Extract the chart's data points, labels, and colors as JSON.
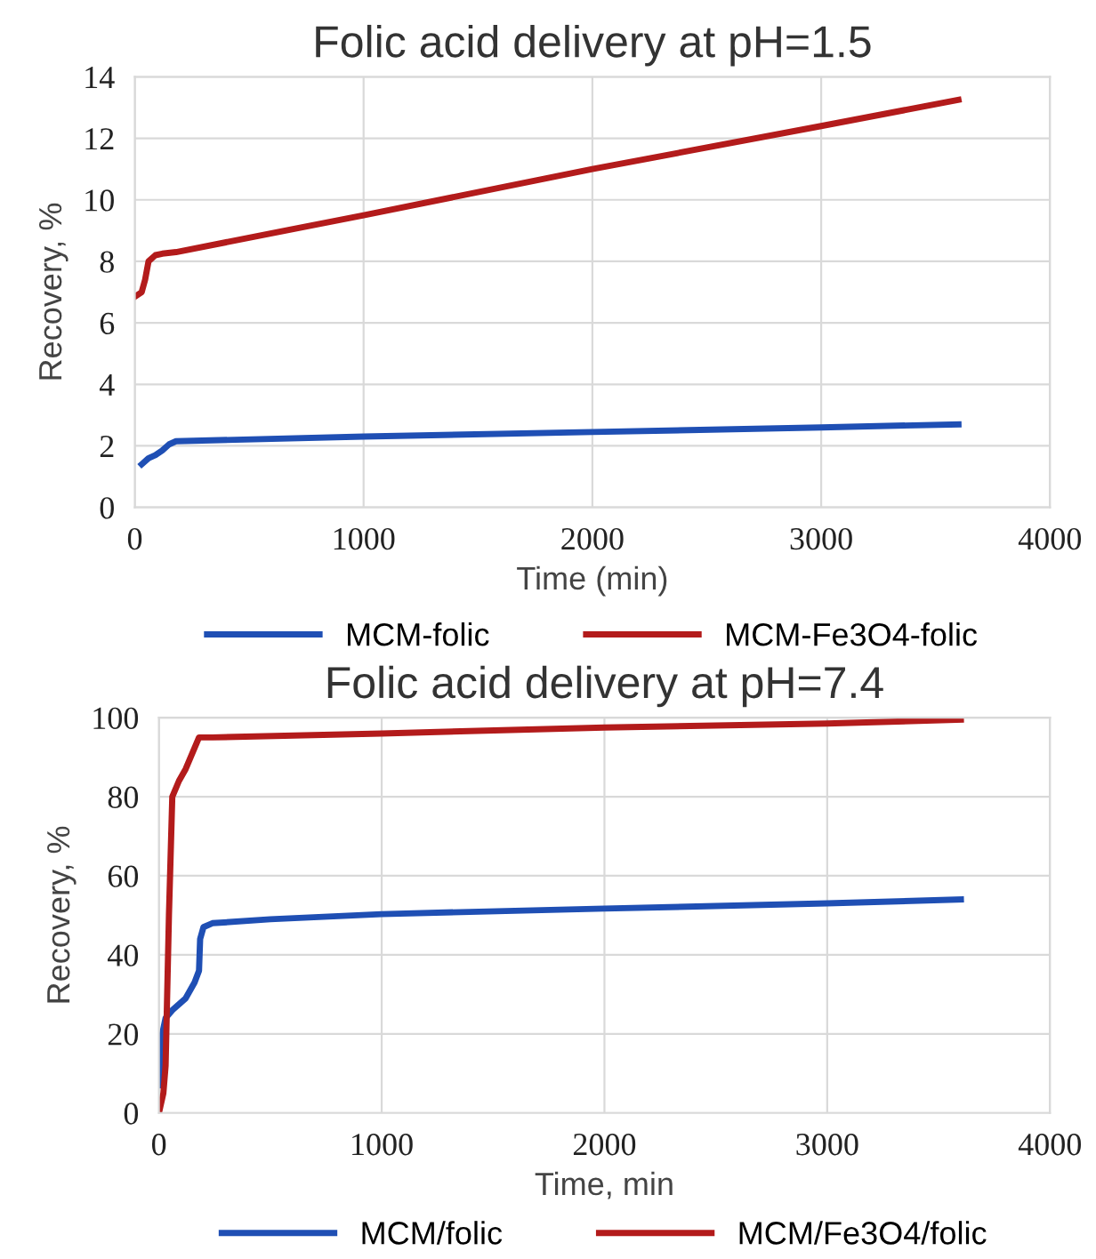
{
  "chart_data": [
    {
      "type": "line",
      "title": "Folic acid delivery at pH=1.5",
      "xlabel": "Time (min)",
      "ylabel": "Recovery, %",
      "xlim": [
        0,
        4000
      ],
      "xticks": [
        0,
        1000,
        2000,
        3000,
        4000
      ],
      "ylim": [
        0,
        14
      ],
      "yticks": [
        0,
        2,
        4,
        6,
        8,
        10,
        12,
        14
      ],
      "grid": true,
      "legend": "bottom",
      "series": [
        {
          "name": "MCM-folic",
          "color": "#1f4fb4",
          "x": [
            30,
            60,
            90,
            120,
            150,
            180,
            1000,
            2000,
            3000,
            3600
          ],
          "values": [
            1.4,
            1.6,
            1.7,
            1.85,
            2.05,
            2.15,
            2.3,
            2.45,
            2.6,
            2.7
          ]
        },
        {
          "name": "MCM-Fe3O4-folic",
          "color": "#b31b1b",
          "x": [
            0,
            30,
            45,
            60,
            90,
            120,
            180,
            1000,
            2000,
            3000,
            3600
          ],
          "values": [
            6.85,
            7.0,
            7.4,
            8.0,
            8.2,
            8.25,
            8.3,
            9.5,
            11.0,
            12.4,
            13.25
          ]
        }
      ]
    },
    {
      "type": "line",
      "title": "Folic acid delivery at pH=7.4",
      "xlabel": "Time, min",
      "ylabel": "Recovery, %",
      "xlim": [
        0,
        4000
      ],
      "xticks": [
        0,
        1000,
        2000,
        3000,
        4000
      ],
      "ylim": [
        0,
        100
      ],
      "yticks": [
        0,
        20,
        40,
        60,
        80,
        100
      ],
      "grid": true,
      "legend": "bottom",
      "series": [
        {
          "name": "MCM/folic",
          "color": "#1f4fb4",
          "x": [
            0,
            15,
            30,
            60,
            120,
            160,
            180,
            185,
            200,
            240,
            500,
            1000,
            2000,
            3000,
            3600
          ],
          "values": [
            7,
            20,
            24,
            26,
            29,
            33,
            36,
            44,
            47,
            48,
            49,
            50.3,
            51.7,
            53,
            54
          ]
        },
        {
          "name": "MCM/Fe3O4/folic",
          "color": "#b31b1b",
          "x": [
            0,
            20,
            30,
            45,
            60,
            90,
            120,
            150,
            180,
            240,
            1000,
            2000,
            3000,
            3600
          ],
          "values": [
            0,
            5,
            12,
            50,
            80,
            84,
            87,
            91,
            95,
            95,
            96,
            97.5,
            98.5,
            99.5
          ]
        }
      ]
    }
  ]
}
